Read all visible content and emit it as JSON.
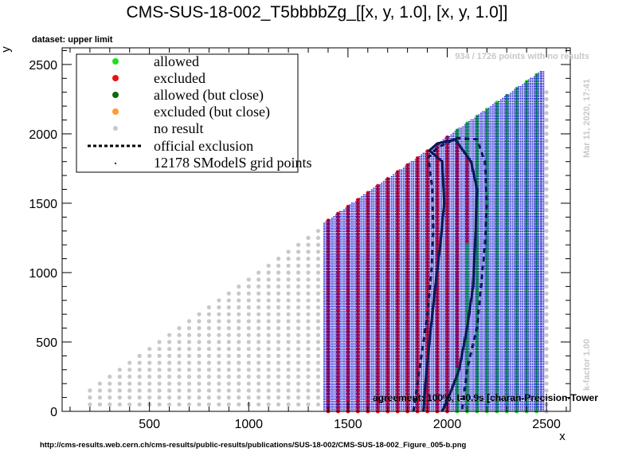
{
  "chart_data": {
    "type": "scatter",
    "title": "CMS-SUS-18-002_T5bbbbZg_[[x, y, 1.0], [x, y, 1.0]]",
    "subtitle": "dataset: upper limit",
    "xlabel": "x",
    "ylabel": "y",
    "xlim": [
      60,
      2620
    ],
    "ylim": [
      0,
      2620
    ],
    "xticks": [
      500,
      1000,
      1500,
      2000,
      2500
    ],
    "yticks": [
      0,
      500,
      1000,
      1500,
      2000,
      2500
    ],
    "grid": false,
    "legend_position": "top-left",
    "legend": [
      {
        "label": "allowed",
        "color": "#22dd22",
        "marker": "dot"
      },
      {
        "label": "excluded",
        "color": "#ee1111",
        "marker": "dot"
      },
      {
        "label": "allowed (but close)",
        "color": "#0b6b0b",
        "marker": "dot"
      },
      {
        "label": "excluded (but close)",
        "color": "#ff9933",
        "marker": "dot"
      },
      {
        "label": "no result",
        "color": "#c8c8c8",
        "marker": "dot"
      },
      {
        "label": "official exclusion",
        "color": "#000000",
        "marker": "dashed-line"
      },
      {
        "label": "12178 SModelS grid points",
        "color": "#0000cc",
        "marker": "small-dot"
      }
    ],
    "grid_regions": {
      "no_result": {
        "x_range": [
          200,
          1350
        ],
        "x_step": 50,
        "y_range": [
          50,
          "x-50"
        ],
        "y_step": 50
      },
      "scanned": {
        "x_range": [
          1400,
          2500
        ],
        "x_step": 50,
        "y_range": [
          0,
          "x-25"
        ]
      },
      "right_no_result_column": {
        "x": 2500,
        "y_range": [
          0,
          2300
        ],
        "y_step": 50
      }
    },
    "excluded_region_boundary_x_at_y": [
      [
        0,
        2040
      ],
      [
        200,
        2040
      ],
      [
        400,
        2060
      ],
      [
        700,
        2080
      ],
      [
        1000,
        2090
      ],
      [
        1400,
        2110
      ],
      [
        1700,
        2110
      ],
      [
        1850,
        2100
      ],
      [
        1950,
        2050
      ],
      [
        2000,
        2040
      ]
    ],
    "official_exclusion_solid": [
      [
        1880,
        0
      ],
      [
        1890,
        200
      ],
      [
        1910,
        500
      ],
      [
        1940,
        900
      ],
      [
        1965,
        1200
      ],
      [
        1985,
        1500
      ],
      [
        1975,
        1800
      ],
      [
        1910,
        1880
      ],
      [
        1950,
        1930
      ],
      [
        2040,
        1960
      ],
      [
        2120,
        1800
      ],
      [
        2150,
        1600
      ],
      [
        2140,
        1200
      ],
      [
        2130,
        900
      ],
      [
        2100,
        600
      ],
      [
        2060,
        300
      ],
      [
        2020,
        150
      ],
      [
        1975,
        0
      ]
    ],
    "official_exclusion_dashed": [
      [
        [
          1830,
          0
        ],
        [
          1860,
          300
        ],
        [
          1900,
          700
        ],
        [
          1920,
          1000
        ],
        [
          1930,
          1300
        ],
        [
          1925,
          1600
        ],
        [
          1905,
          1830
        ],
        [
          1950,
          1900
        ],
        [
          2050,
          1970
        ],
        [
          2150,
          1960
        ],
        [
          2190,
          1800
        ],
        [
          2200,
          1500
        ],
        [
          2190,
          1200
        ],
        [
          2170,
          900
        ],
        [
          2150,
          600
        ],
        [
          2100,
          300
        ],
        [
          2075,
          0
        ]
      ]
    ],
    "annotations": {
      "no_results_count": "934 / 1726 points with no results",
      "date": "Mar 11, 2020, 17:41",
      "kfactor": "k-factor 1.00",
      "agreement": "agreement: 100%, t=0.9s [charan-Precision-Tower",
      "source_url": "http://cms-results.web.cern.ch/cms-results/public-results/publications/SUS-18-002/CMS-SUS-18-002_Figure_005-b.png"
    },
    "colors": {
      "allowed": "#22dd22",
      "excluded": "#ee1111",
      "no_result": "#c8c8c8",
      "grid_point": "#0000cc",
      "exclusion_line": "#0a1a55",
      "background": "#ffffff"
    }
  }
}
